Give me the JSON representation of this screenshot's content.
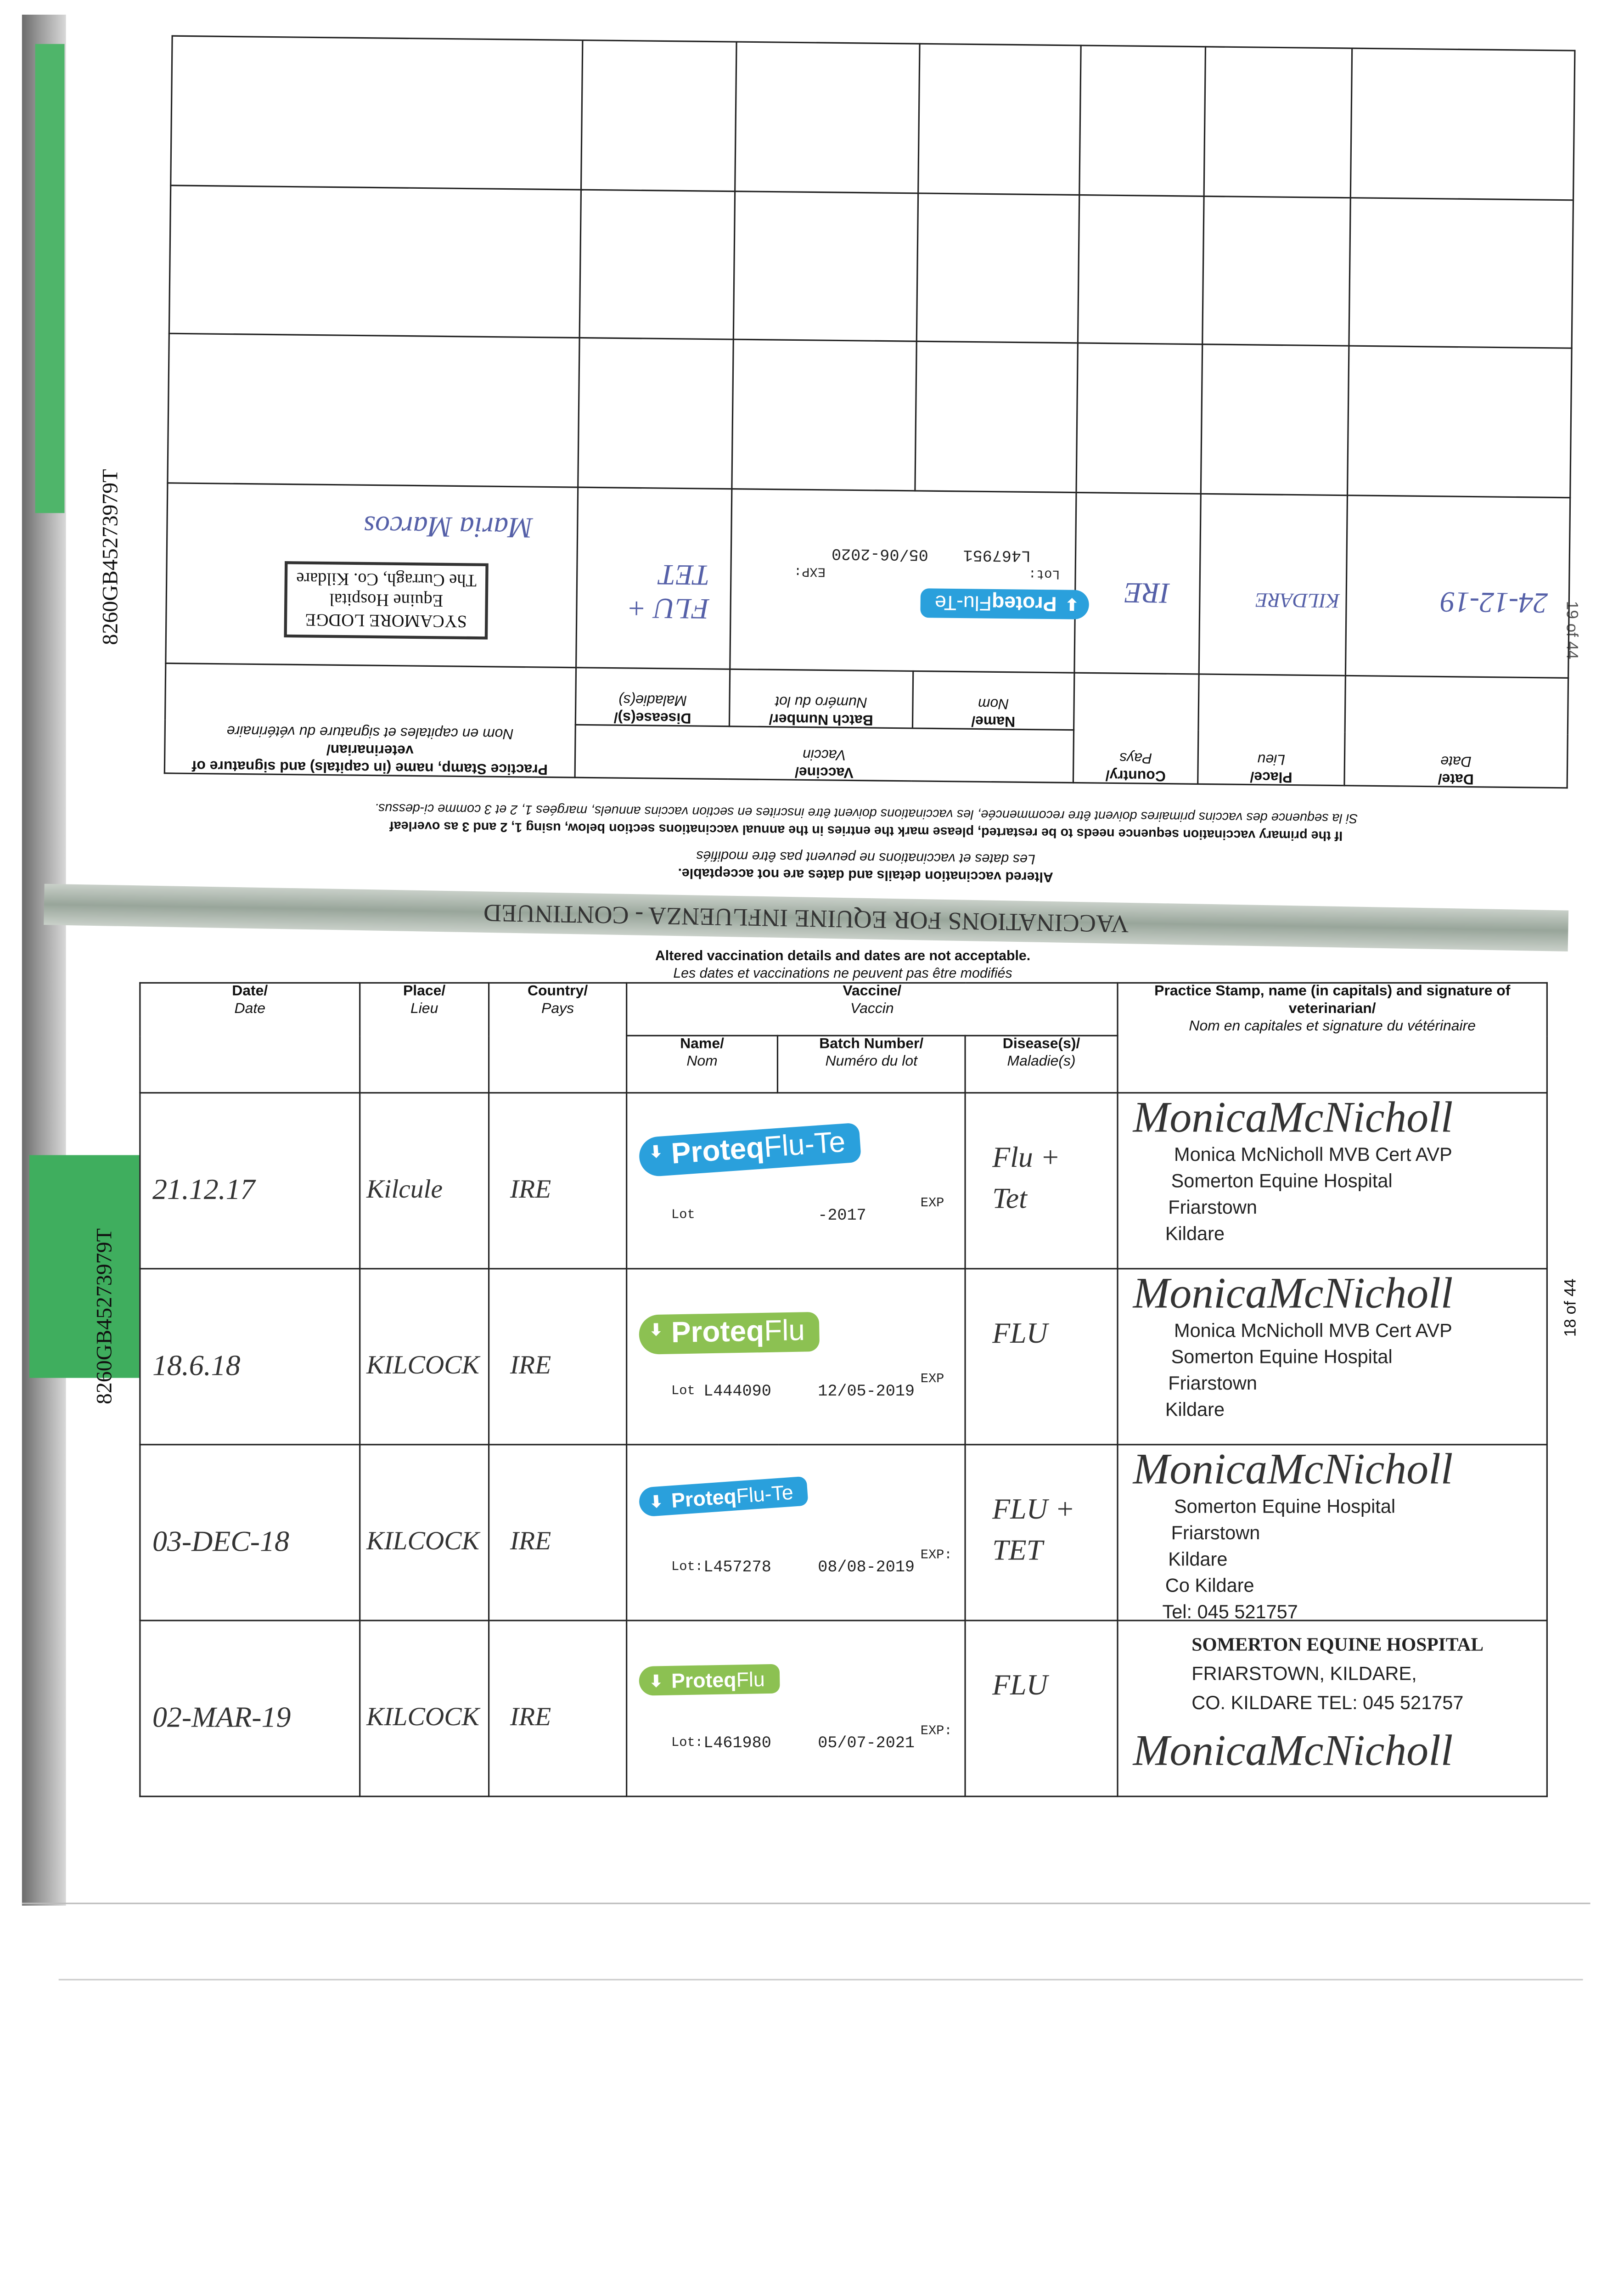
{
  "margin": {
    "binder_code_top": "8260GB45273979T",
    "binder_code_bottom": "8260GB45273979T",
    "page_number_right": "18 of 44",
    "page_number_upper_partial": "19 of 44"
  },
  "headers": {
    "date": "Date/",
    "date_fr": "Date",
    "place": "Place/",
    "place_fr": "Lieu",
    "country": "Country/",
    "country_fr": "Pays",
    "vaccine": "Vaccine/",
    "vaccine_fr": "Vaccin",
    "name": "Name/",
    "name_fr": "Nom",
    "batch": "Batch Number/",
    "batch_fr": "Numéro du lot",
    "disease": "Disease(s)/",
    "disease_fr": "Maladie(s)",
    "practice": "Practice Stamp, name (in capitals) and signature of veterinarian/",
    "practice_fr": "Nom en capitales et signature du vétérinaire"
  },
  "upper_page": {
    "notes": [
      "Altered vaccination details and dates are not acceptable.",
      "Les dates et vaccinations ne peuvent pas être modifiés",
      "If the primary vaccination sequence needs to be restarted, please mark the entries in the annual vaccinations section below, using 1, 2 and 3 as overleaf",
      "Si la sequence des vaccins primaires doivent être recommencée, les vaccinations doivent être inscrites en section vaccins annuels, margées 1, 2 et 3 comme ci-dessus."
    ],
    "entry": {
      "date": "24-12-19",
      "place": "KILDARE",
      "country": "IRE",
      "vaccine_brand": "Proteq",
      "vaccine_product": "Flu-Te",
      "lot_label": "Lot:",
      "exp_label": "EXP:",
      "lot": "L467951",
      "exp": "05/06-2020",
      "disease": "FLU + TET",
      "stamp": [
        "SYCAMORE LODGE",
        "Equine Hospital",
        "The Curragh, Co. Kildare"
      ],
      "signature": "Maria Marcos"
    }
  },
  "section": {
    "title": "VACCINATIONS FOR EQUINE INFLUENZA - CONTINUED",
    "note_en": "Altered vaccination details and dates are not acceptable.",
    "note_fr": "Les dates et vaccinations ne peuvent pas être modifiés"
  },
  "rows": [
    {
      "date": "21.12.17",
      "place": "Kilcule",
      "country": "IRE",
      "brand": "Proteq",
      "product": "Flu-Te",
      "color": "#2aa0dc",
      "lot_label": "Lot",
      "lot": "",
      "exp": "-2017",
      "exp_label": "EXP",
      "disease": "Flu + Tet",
      "signature": "MonicaMcNicholl",
      "stamp": [
        "Monica McNicholl MVB Cert AVP",
        "Somerton Equine Hospital",
        "Friarstown",
        "Kildare"
      ]
    },
    {
      "date": "18.6.18",
      "place": "KILCOCK",
      "country": "IRE",
      "brand": "Proteq",
      "product": "Flu",
      "color": "#8cc152",
      "lot_label": "Lot",
      "lot": "L444090",
      "exp": "12/05-2019",
      "exp_label": "EXP",
      "disease": "FLU",
      "signature": "MonicaMcNicholl",
      "stamp": [
        "Monica McNicholl MVB Cert AVP",
        "Somerton Equine Hospital",
        "Friarstown",
        "Kildare"
      ]
    },
    {
      "date": "03-DEC-18",
      "place": "KILCOCK",
      "country": "IRE",
      "brand": "Proteq",
      "product": "Flu-Te",
      "color": "#2aa0dc",
      "lot_label": "Lot:",
      "lot": "L457278",
      "exp": "08/08-2019",
      "exp_label": "EXP:",
      "disease": "FLU + TET",
      "signature": "MonicaMcNicholl",
      "stamp": [
        "Somerton Equine Hospital",
        "Friarstown",
        "Kildare",
        "Co Kildare",
        "Tel: 045 521757"
      ]
    },
    {
      "date": "02-MAR-19",
      "place": "KILCOCK",
      "country": "IRE",
      "brand": "Proteq",
      "product": "Flu",
      "color": "#8cc152",
      "lot_label": "Lot:",
      "lot": "L461980",
      "exp": "05/07-2021",
      "exp_label": "EXP:",
      "disease": "FLU",
      "signature": "MonicaMcNicholl",
      "stamp": [
        "SOMERTON EQUINE HOSPITAL",
        "FRIARSTOWN, KILDARE,",
        "CO. KILDARE  TEL: 045 521757"
      ]
    }
  ],
  "colors": {
    "flu_te_label": "#2aa0dc",
    "flu_label": "#8cc152",
    "binder_green": "#3fae5e",
    "band_gray": "#98a59a"
  }
}
